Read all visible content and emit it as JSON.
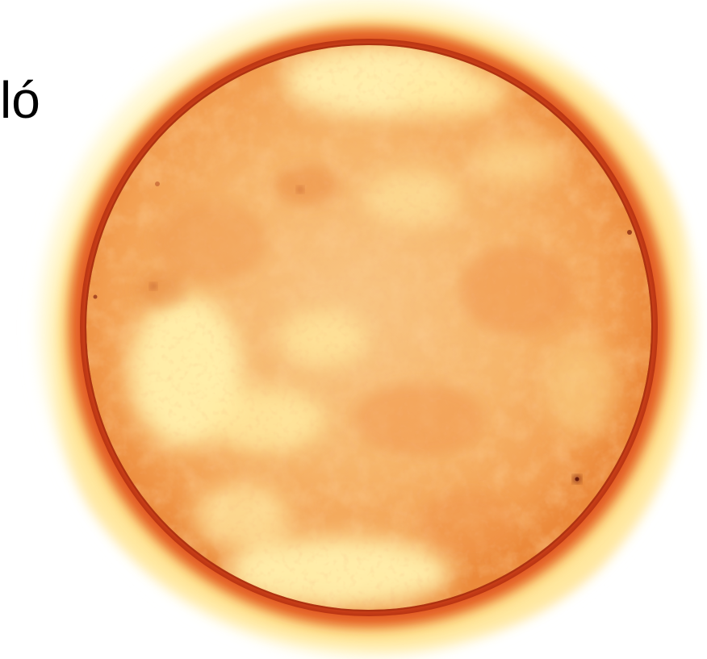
{
  "image": {
    "corner_text": "ló",
    "subject": "sun-disk",
    "colors": {
      "background": "#ffffff",
      "halo_outer": "#fff7c4",
      "halo_mid": "#ffe27a",
      "limb_dark": "#d9411c",
      "limb_orange": "#ef7a2c",
      "disk_base": "#f7b66a",
      "disk_light": "#fde7a0",
      "plage_pale": "#fff2b4",
      "spot_dark": "#7a2410"
    }
  }
}
